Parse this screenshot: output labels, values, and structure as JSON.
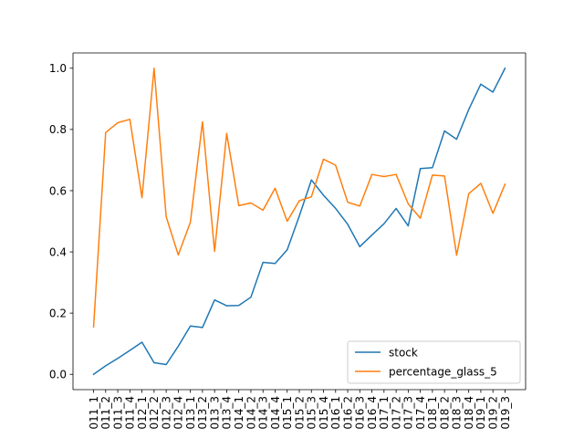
{
  "chart_data": {
    "type": "line",
    "categories": [
      "011_1",
      "011_2",
      "011_3",
      "011_4",
      "012_1",
      "012_2",
      "012_3",
      "012_4",
      "013_1",
      "013_2",
      "013_3",
      "013_4",
      "014_1",
      "014_2",
      "014_3",
      "014_4",
      "015_1",
      "015_2",
      "015_3",
      "015_4",
      "016_1",
      "016_2",
      "016_3",
      "016_4",
      "017_1",
      "017_2",
      "017_3",
      "017_4",
      "018_1",
      "018_2",
      "018_3",
      "018_4",
      "019_1",
      "019_2",
      "019_3"
    ],
    "series": [
      {
        "name": "stock",
        "color": "#1f77b4",
        "values": [
          0.0,
          0.028,
          0.052,
          0.078,
          0.105,
          0.038,
          0.032,
          0.092,
          0.158,
          0.153,
          0.243,
          0.224,
          0.225,
          0.252,
          0.366,
          0.362,
          0.407,
          0.517,
          0.635,
          0.585,
          0.542,
          0.49,
          0.417,
          0.455,
          0.492,
          0.542,
          0.485,
          0.672,
          0.675,
          0.795,
          0.768,
          0.865,
          0.948,
          0.922,
          1.0
        ]
      },
      {
        "name": "percentage_glass_5",
        "color": "#ff7f0e",
        "values": [
          0.155,
          0.79,
          0.822,
          0.833,
          0.577,
          1.0,
          0.515,
          0.39,
          0.497,
          0.825,
          0.402,
          0.787,
          0.551,
          0.56,
          0.536,
          0.608,
          0.5,
          0.567,
          0.58,
          0.703,
          0.683,
          0.562,
          0.55,
          0.653,
          0.646,
          0.653,
          0.557,
          0.51,
          0.651,
          0.648,
          0.389,
          0.59,
          0.624,
          0.526,
          0.621
        ]
      }
    ],
    "ylim": [
      -0.05,
      1.05
    ],
    "yticks": [
      0.0,
      0.2,
      0.4,
      0.6,
      0.8,
      1.0
    ],
    "ytick_labels": [
      "0.0",
      "0.2",
      "0.4",
      "0.6",
      "0.8",
      "1.0"
    ],
    "grid": false,
    "legend_position": "lower-right"
  }
}
